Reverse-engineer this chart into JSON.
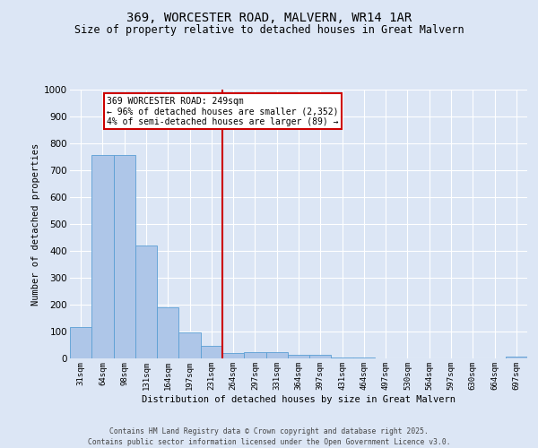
{
  "title": "369, WORCESTER ROAD, MALVERN, WR14 1AR",
  "subtitle": "Size of property relative to detached houses in Great Malvern",
  "xlabel": "Distribution of detached houses by size in Great Malvern",
  "ylabel": "Number of detached properties",
  "bar_labels": [
    "31sqm",
    "64sqm",
    "98sqm",
    "131sqm",
    "164sqm",
    "197sqm",
    "231sqm",
    "264sqm",
    "297sqm",
    "331sqm",
    "364sqm",
    "397sqm",
    "431sqm",
    "464sqm",
    "497sqm",
    "530sqm",
    "564sqm",
    "597sqm",
    "630sqm",
    "664sqm",
    "697sqm"
  ],
  "bar_values": [
    117,
    757,
    757,
    420,
    191,
    96,
    48,
    20,
    22,
    22,
    15,
    15,
    3,
    2,
    1,
    0,
    0,
    0,
    0,
    0,
    8
  ],
  "bar_color": "#aec6e8",
  "bar_edge_color": "#5a9fd4",
  "vline_x_index": 7,
  "vline_color": "#cc0000",
  "annotation_text": "369 WORCESTER ROAD: 249sqm\n← 96% of detached houses are smaller (2,352)\n4% of semi-detached houses are larger (89) →",
  "annotation_box_color": "#ffffff",
  "annotation_box_edge": "#cc0000",
  "ylim": [
    0,
    1000
  ],
  "yticks": [
    0,
    100,
    200,
    300,
    400,
    500,
    600,
    700,
    800,
    900,
    1000
  ],
  "bg_color": "#dce6f5",
  "grid_color": "#ffffff",
  "footer1": "Contains HM Land Registry data © Crown copyright and database right 2025.",
  "footer2": "Contains public sector information licensed under the Open Government Licence v3.0."
}
